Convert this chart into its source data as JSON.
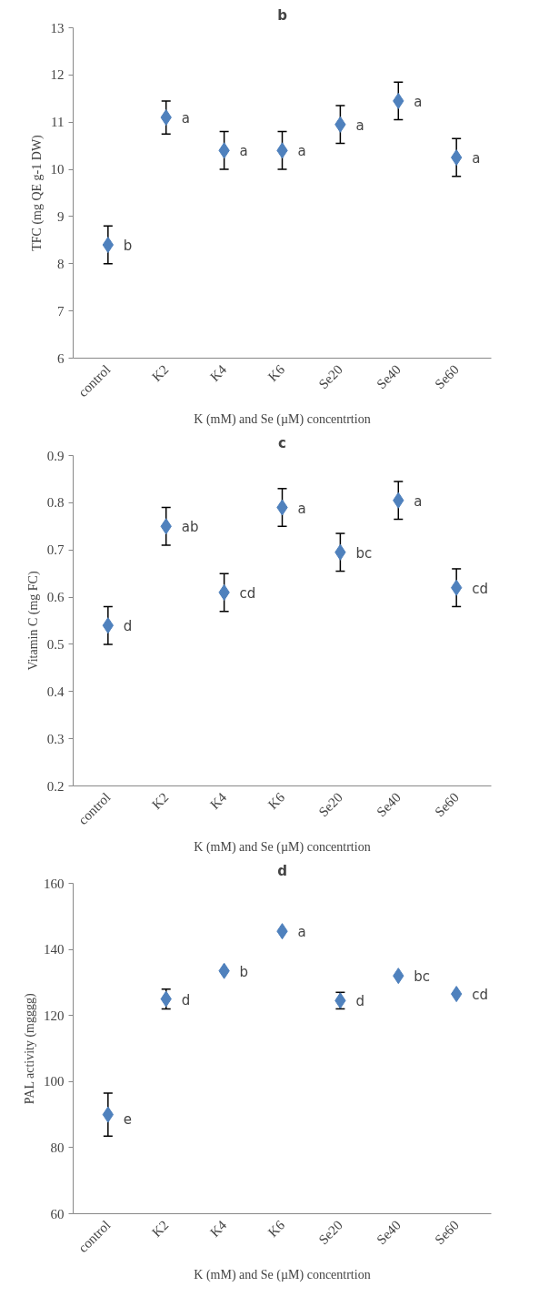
{
  "chart_data": [
    {
      "type": "scatter",
      "title": "b",
      "xlabel": "K (mM) and Se (µM) concentrtion",
      "ylabel": "TFC (mg QE g-1 DW)",
      "categories": [
        "control",
        "K2",
        "K4",
        "K6",
        "Se20",
        "Se40",
        "Se60"
      ],
      "marker": "diamond",
      "grid": false,
      "ylim": [
        6,
        13
      ],
      "yticks": [
        6,
        7,
        8,
        9,
        10,
        11,
        12,
        13
      ],
      "series": [
        {
          "color": "#4f81bd",
          "values": [
            8.4,
            11.1,
            10.4,
            10.4,
            10.95,
            11.45,
            10.25
          ],
          "errors": [
            0.4,
            0.35,
            0.4,
            0.4,
            0.4,
            0.4,
            0.4
          ]
        }
      ],
      "annotations": [
        {
          "text": "b",
          "x": "control",
          "y": 8.4
        },
        {
          "text": "a",
          "x": "K2",
          "y": 11.1
        },
        {
          "text": "a",
          "x": "K4",
          "y": 10.4
        },
        {
          "text": "a",
          "x": "K6",
          "y": 10.4
        },
        {
          "text": "a",
          "x": "Se20",
          "y": 10.95
        },
        {
          "text": "a",
          "x": "Se40",
          "y": 11.45
        },
        {
          "text": "a",
          "x": "Se60",
          "y": 10.25
        }
      ]
    },
    {
      "type": "scatter",
      "title": "c",
      "xlabel": "K (mM) and Se (µM) concentrtion",
      "ylabel": "Vitamin C (mg FC)",
      "categories": [
        "control",
        "K2",
        "K4",
        "K6",
        "Se20",
        "Se40",
        "Se60"
      ],
      "marker": "diamond",
      "grid": false,
      "ylim": [
        0.2,
        0.9
      ],
      "yticks": [
        0.2,
        0.3,
        0.4,
        0.5,
        0.6,
        0.7,
        0.8,
        0.9
      ],
      "series": [
        {
          "color": "#4f81bd",
          "values": [
            0.54,
            0.75,
            0.61,
            0.79,
            0.695,
            0.805,
            0.62
          ],
          "errors": [
            0.04,
            0.04,
            0.04,
            0.04,
            0.04,
            0.04,
            0.04
          ]
        }
      ],
      "annotations": [
        {
          "text": "d",
          "x": "control",
          "y": 0.54
        },
        {
          "text": "ab",
          "x": "K2",
          "y": 0.75
        },
        {
          "text": "cd",
          "x": "K4",
          "y": 0.61
        },
        {
          "text": "a",
          "x": "K6",
          "y": 0.79
        },
        {
          "text": "bc",
          "x": "Se20",
          "y": 0.695
        },
        {
          "text": "a",
          "x": "Se40",
          "y": 0.805
        },
        {
          "text": "cd",
          "x": "Se60",
          "y": 0.62
        }
      ]
    },
    {
      "type": "scatter",
      "title": "d",
      "xlabel": "K (mM) and Se (µM) concentrtion",
      "ylabel": "PAL activity (mgggg)",
      "categories": [
        "control",
        "K2",
        "K4",
        "K6",
        "Se20",
        "Se40",
        "Se60"
      ],
      "marker": "diamond",
      "grid": false,
      "ylim": [
        60,
        160
      ],
      "yticks": [
        60,
        80,
        100,
        120,
        140,
        160
      ],
      "series": [
        {
          "color": "#4f81bd",
          "values": [
            90,
            125,
            133.5,
            145.5,
            124.5,
            132,
            126.5
          ],
          "errors": [
            6.5,
            3,
            null,
            null,
            2.5,
            null,
            null
          ]
        }
      ],
      "annotations": [
        {
          "text": "e",
          "x": "control",
          "y": 90
        },
        {
          "text": "d",
          "x": "K2",
          "y": 125
        },
        {
          "text": "b",
          "x": "K4",
          "y": 133.5
        },
        {
          "text": "a",
          "x": "K6",
          "y": 145.5
        },
        {
          "text": "d",
          "x": "Se20",
          "y": 124.5
        },
        {
          "text": "bc",
          "x": "Se40",
          "y": 132
        },
        {
          "text": "cd",
          "x": "Se60",
          "y": 126.5
        }
      ]
    }
  ]
}
